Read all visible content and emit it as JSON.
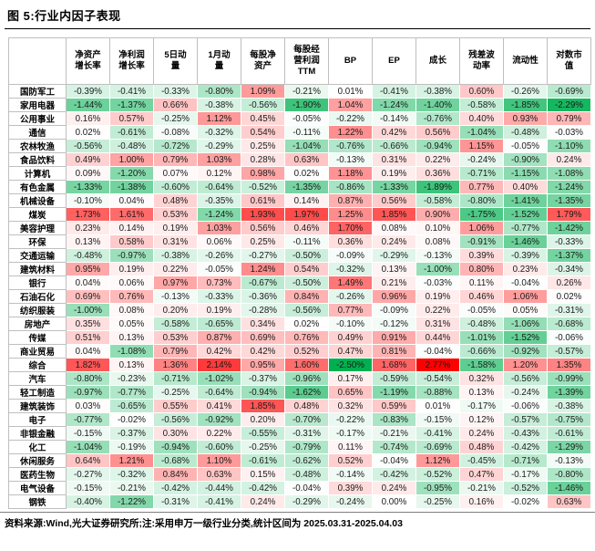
{
  "figure": {
    "title": "图 5:行业内因子表现"
  },
  "footer": {
    "text": "资料来源:Wind,光大证券研究所;注:采用申万一级行业分类,统计区间为 2025.03.31-2025.04.03"
  },
  "colors": {
    "positive_max_color": "#FF0000",
    "negative_max_color": "#00B050",
    "mid_color": "#FFFFFF",
    "scale_positive_max": 2.77,
    "scale_negative_min": -2.5
  },
  "chart_data": {
    "type": "heatmap",
    "title": "图 5:行业内因子表现",
    "value_format": "percent, 2 decimals",
    "columns": [
      "净资产\n增长率",
      "净利润\n增长率",
      "5日动\n量",
      "1月动\n量",
      "每股净\n资产",
      "每股经\n营利润\nTTM",
      "BP",
      "EP",
      "成长",
      "残差波\n动率",
      "流动性",
      "对数市\n值"
    ],
    "rows": [
      {
        "name": "国防军工",
        "values": [
          -0.39,
          -0.41,
          -0.33,
          -0.8,
          1.09,
          -0.21,
          0.01,
          -0.41,
          -0.38,
          0.6,
          -0.26,
          -0.69
        ]
      },
      {
        "name": "家用电器",
        "values": [
          -1.44,
          -1.37,
          0.66,
          -0.38,
          -0.56,
          -1.9,
          1.04,
          -1.24,
          -1.4,
          -0.58,
          -1.85,
          -2.29
        ]
      },
      {
        "name": "公用事业",
        "values": [
          0.16,
          0.57,
          -0.25,
          1.12,
          0.45,
          -0.05,
          -0.22,
          -0.14,
          -0.76,
          0.4,
          0.93,
          0.79
        ]
      },
      {
        "name": "通信",
        "values": [
          0.02,
          -0.61,
          -0.08,
          -0.32,
          0.54,
          -0.11,
          1.22,
          0.42,
          0.56,
          -1.04,
          -0.48,
          -0.03
        ]
      },
      {
        "name": "农林牧渔",
        "values": [
          -0.56,
          -0.48,
          -0.72,
          -0.29,
          0.25,
          -1.04,
          -0.76,
          -0.66,
          -0.94,
          1.15,
          -0.05,
          -1.1
        ]
      },
      {
        "name": "食品饮料",
        "values": [
          0.49,
          1.0,
          0.79,
          1.03,
          0.28,
          0.63,
          -0.13,
          0.31,
          0.22,
          -0.24,
          -0.9,
          0.24
        ]
      },
      {
        "name": "计算机",
        "values": [
          0.09,
          -1.2,
          0.07,
          0.12,
          0.98,
          0.02,
          1.18,
          0.19,
          0.36,
          -0.71,
          -1.15,
          -1.08
        ]
      },
      {
        "name": "有色金属",
        "values": [
          -1.33,
          -1.38,
          -0.6,
          -0.64,
          -0.52,
          -1.35,
          -0.86,
          -1.33,
          -1.89,
          0.77,
          0.4,
          -1.24
        ]
      },
      {
        "name": "机械设备",
        "values": [
          -0.1,
          0.04,
          0.48,
          -0.35,
          0.61,
          0.14,
          0.87,
          0.56,
          -0.58,
          -0.8,
          -1.41,
          -1.35
        ]
      },
      {
        "name": "煤炭",
        "values": [
          1.73,
          1.61,
          0.53,
          -1.24,
          1.93,
          1.97,
          1.25,
          1.85,
          0.9,
          -1.75,
          -1.52,
          1.79
        ]
      },
      {
        "name": "美容护理",
        "values": [
          0.23,
          0.14,
          0.19,
          1.03,
          0.56,
          0.46,
          1.7,
          0.08,
          0.1,
          1.06,
          -0.77,
          -1.42
        ]
      },
      {
        "name": "环保",
        "values": [
          0.13,
          0.58,
          0.31,
          0.06,
          0.25,
          -0.11,
          0.36,
          0.24,
          0.08,
          -0.91,
          -1.46,
          -0.33
        ]
      },
      {
        "name": "交通运输",
        "values": [
          -0.48,
          -0.97,
          -0.38,
          -0.26,
          -0.27,
          -0.5,
          -0.09,
          -0.29,
          -0.13,
          0.39,
          -0.39,
          -1.37
        ]
      },
      {
        "name": "建筑材料",
        "values": [
          0.95,
          0.19,
          0.22,
          -0.05,
          1.24,
          0.54,
          -0.32,
          0.13,
          -1.0,
          0.8,
          0.23,
          -0.34
        ]
      },
      {
        "name": "银行",
        "values": [
          0.04,
          0.06,
          0.97,
          0.73,
          -0.67,
          -0.5,
          1.49,
          0.21,
          -0.03,
          0.11,
          -0.04,
          0.26
        ]
      },
      {
        "name": "石油石化",
        "values": [
          0.69,
          0.76,
          -0.13,
          -0.33,
          -0.36,
          0.84,
          -0.26,
          0.96,
          0.19,
          0.46,
          1.06,
          0.02
        ]
      },
      {
        "name": "纺织服装",
        "values": [
          -1.0,
          0.08,
          0.2,
          0.19,
          -0.28,
          -0.56,
          0.77,
          -0.09,
          0.22,
          -0.05,
          0.05,
          -0.31
        ]
      },
      {
        "name": "房地产",
        "values": [
          0.35,
          0.05,
          -0.58,
          -0.65,
          0.34,
          0.02,
          -0.1,
          -0.12,
          0.31,
          -0.48,
          -1.06,
          -0.68
        ]
      },
      {
        "name": "传媒",
        "values": [
          0.51,
          0.13,
          0.53,
          0.87,
          0.69,
          0.76,
          0.49,
          0.91,
          0.44,
          -1.01,
          -1.52,
          -0.06
        ]
      },
      {
        "name": "商业贸易",
        "values": [
          0.04,
          -1.08,
          0.79,
          0.42,
          0.42,
          0.52,
          0.47,
          0.81,
          -0.04,
          -0.66,
          -0.92,
          -0.57
        ]
      },
      {
        "name": "综合",
        "values": [
          1.82,
          0.13,
          1.36,
          2.14,
          0.95,
          1.6,
          -2.5,
          1.68,
          2.77,
          -1.58,
          1.2,
          1.35
        ]
      },
      {
        "name": "汽车",
        "values": [
          -0.8,
          -0.23,
          -0.71,
          -1.02,
          -0.37,
          -0.96,
          0.17,
          -0.59,
          -0.54,
          0.32,
          -0.56,
          -0.99
        ]
      },
      {
        "name": "轻工制造",
        "values": [
          -0.97,
          -0.77,
          -0.25,
          -0.64,
          -0.94,
          -1.62,
          0.65,
          -1.19,
          -0.88,
          0.13,
          -0.24,
          -1.39
        ]
      },
      {
        "name": "建筑装饰",
        "values": [
          0.03,
          -0.65,
          0.55,
          0.41,
          1.85,
          0.48,
          0.32,
          0.59,
          0.01,
          -0.17,
          -0.06,
          -0.38
        ]
      },
      {
        "name": "电子",
        "values": [
          -0.77,
          -0.02,
          -0.56,
          -0.92,
          0.2,
          -0.7,
          -0.22,
          -0.83,
          -0.15,
          0.12,
          -0.57,
          -0.75
        ]
      },
      {
        "name": "非银金融",
        "values": [
          -0.15,
          -0.37,
          0.3,
          0.22,
          -0.55,
          -0.31,
          -0.17,
          -0.21,
          -0.41,
          0.24,
          -0.43,
          -0.61
        ]
      },
      {
        "name": "化工",
        "values": [
          -1.04,
          -0.19,
          -0.94,
          -0.6,
          -0.25,
          -0.79,
          0.11,
          -0.74,
          -0.69,
          0.48,
          -0.42,
          -1.29
        ]
      },
      {
        "name": "休闲服务",
        "values": [
          0.64,
          1.21,
          -0.68,
          1.1,
          -0.61,
          -0.62,
          0.52,
          -0.04,
          1.12,
          -0.45,
          -0.71,
          -0.13
        ]
      },
      {
        "name": "医药生物",
        "values": [
          -0.27,
          -0.32,
          0.84,
          0.63,
          0.15,
          -0.48,
          -0.14,
          -0.42,
          -0.52,
          0.47,
          -0.17,
          -0.8
        ]
      },
      {
        "name": "电气设备",
        "values": [
          -0.15,
          -0.21,
          -0.42,
          -0.44,
          -0.42,
          -0.04,
          0.39,
          0.24,
          -0.95,
          -0.21,
          -0.52,
          -1.46
        ]
      },
      {
        "name": "钢铁",
        "values": [
          -0.4,
          -1.22,
          -0.31,
          -0.41,
          0.24,
          -0.29,
          -0.24,
          0.0,
          -0.25,
          0.16,
          -0.02,
          0.63
        ]
      }
    ]
  }
}
